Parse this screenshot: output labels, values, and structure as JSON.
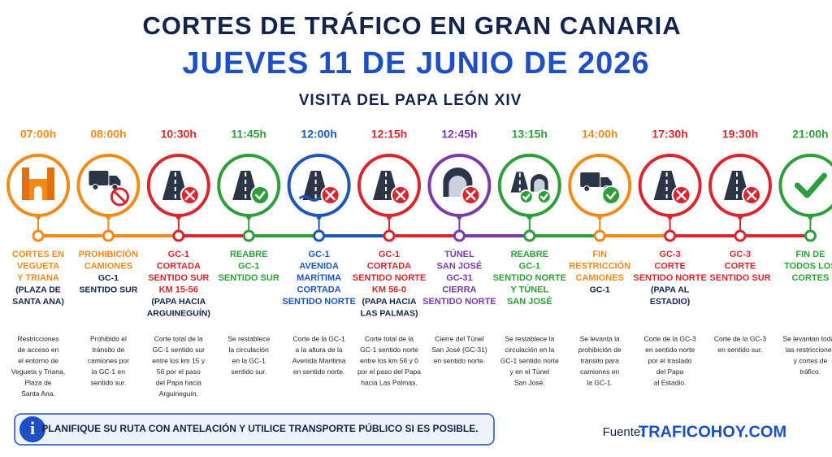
{
  "header": {
    "title": "CORTES DE TRÁFICO EN GRAN CANARIA",
    "date": "JUEVES 11 DE JUNIO DE 2026",
    "subtitle": "VISITA DEL PAPA LEÓN XIV"
  },
  "events": [
    {
      "time": "07:00h",
      "color": "#f28a1a",
      "headline": [
        "CORTES EN",
        "VEGUETA",
        "Y TRIANA"
      ],
      "sub": [
        "(PLAZA DE",
        "SANTA ANA)"
      ],
      "description": [
        "Restricciones",
        "de acceso en",
        "el entorno de",
        "Vegueta y Triana,",
        "Plaza de",
        "Santa Ana."
      ]
    },
    {
      "time": "08:00h",
      "color": "#f28a1a",
      "headline": [
        "PROHIBICIÓN",
        "CAMIONES"
      ],
      "sub": [
        "GC-1",
        "SENTIDO SUR"
      ],
      "description": [
        "Prohibido el",
        "tránsito de",
        "camiones por",
        "la GC-1 en",
        "sentido sur."
      ]
    },
    {
      "time": "10:30h",
      "color": "#d7262e",
      "headline": [
        "GC-1",
        "CORTADA",
        "SENTIDO SUR",
        "KM 15-56"
      ],
      "sub": [
        "(PAPA HACIA",
        "ARGUINEGUÍN)"
      ],
      "description": [
        "Corte total de la",
        "GC-1 sentido sur",
        "entre los km 15 y",
        "56 por el paso",
        "del Papa hacia",
        "Arguineguín."
      ]
    },
    {
      "time": "11:45h",
      "color": "#2e9e3a",
      "headline": [
        "REABRE",
        "GC-1",
        "SENTIDO SUR"
      ],
      "sub": [],
      "description": [
        "Se restablece",
        "la circulación",
        "en la GC-1",
        "sentido sur."
      ]
    },
    {
      "time": "12:00h",
      "color": "#1c56b8",
      "headline": [
        "GC-1",
        "AVENIDA",
        "MARÍTIMA",
        "CORTADA",
        "SENTIDO NORTE"
      ],
      "sub": [],
      "description": [
        "Corte de la GC-1",
        "a la altura de la",
        "Avenida Marítima",
        "en sentido norte."
      ]
    },
    {
      "time": "12:15h",
      "color": "#d7262e",
      "headline": [
        "GC-1",
        "CORTADA",
        "SENTIDO NORTE",
        "KM 56-0"
      ],
      "sub": [
        "(PAPA HACIA",
        "LAS PALMAS)"
      ],
      "description": [
        "Corte total de la",
        "GC-1 sentido norte",
        "entre los km 56 y 0",
        "por el paso del Papa",
        "hacia Las Palmas."
      ]
    },
    {
      "time": "12:45h",
      "color": "#7b3aa8",
      "headline": [
        "TÚNEL",
        "SAN JOSÉ",
        "GC-31",
        "CIERRA",
        "SENTIDO NORTE"
      ],
      "sub": [],
      "description": [
        "Cierre del Túnel",
        "San José (GC-31)",
        "en sentido norte."
      ]
    },
    {
      "time": "13:15h",
      "color": "#2e9e3a",
      "headline": [
        "REABRE",
        "GC-1",
        "SENTIDO NORTE",
        "Y TÚNEL",
        "SAN JOSÉ"
      ],
      "sub": [],
      "description": [
        "Se restablece la",
        "circulación en la",
        "GC-1 sentido norte",
        "y en el Túnel",
        "San José."
      ]
    },
    {
      "time": "14:00h",
      "color": "#f28a1a",
      "headline": [
        "FIN",
        "RESTRICCIÓN",
        "CAMIONES"
      ],
      "sub": [
        "GC-1"
      ],
      "description": [
        "Se levanta la",
        "prohibición de",
        "tránsito para",
        "camiones en",
        "la GC-1."
      ]
    },
    {
      "time": "17:30h",
      "color": "#d7262e",
      "headline": [
        "GC-3",
        "CORTE",
        "SENTIDO NORTE"
      ],
      "sub": [
        "(PAPA AL",
        "ESTADIO)"
      ],
      "description": [
        "Corte de la GC-3",
        "en sentido norte",
        "por el traslado",
        "del Papa",
        "al Estadio."
      ]
    },
    {
      "time": "19:30h",
      "color": "#d7262e",
      "headline": [
        "GC-3",
        "CORTE",
        "SENTIDO SUR"
      ],
      "sub": [],
      "description": [
        "Corte de la GC-3",
        "en sentido sur."
      ]
    },
    {
      "time": "21:00h",
      "color": "#2e9e3a",
      "headline": [
        "FIN DE",
        "TODOS LOS",
        "CORTES"
      ],
      "sub": [],
      "description": [
        "Se levantan todas",
        "las restricciones",
        "y cortes de",
        "tráfico."
      ]
    }
  ],
  "footer": {
    "note": "PLANIFIQUE SU RUTA CON ANTELACIÓN Y UTILICE TRANSPORTE PÚBLICO SI ES POSIBLE.",
    "source_label": "Fuente:",
    "source": "TRAFICOHOY.COM"
  }
}
